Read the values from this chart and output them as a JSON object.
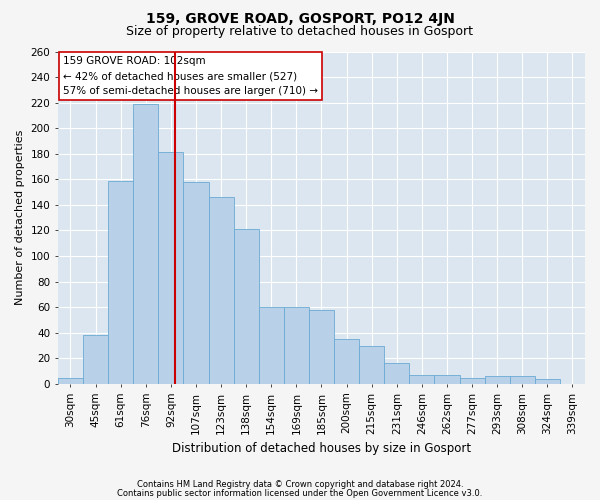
{
  "title": "159, GROVE ROAD, GOSPORT, PO12 4JN",
  "subtitle": "Size of property relative to detached houses in Gosport",
  "xlabel": "Distribution of detached houses by size in Gosport",
  "ylabel": "Number of detached properties",
  "categories": [
    "30sqm",
    "45sqm",
    "61sqm",
    "76sqm",
    "92sqm",
    "107sqm",
    "123sqm",
    "138sqm",
    "154sqm",
    "169sqm",
    "185sqm",
    "200sqm",
    "215sqm",
    "231sqm",
    "246sqm",
    "262sqm",
    "277sqm",
    "293sqm",
    "308sqm",
    "324sqm",
    "339sqm"
  ],
  "values": [
    5,
    38,
    159,
    219,
    181,
    158,
    146,
    121,
    60,
    60,
    58,
    35,
    30,
    16,
    7,
    7,
    5,
    6,
    6,
    4,
    0
  ],
  "bar_color": "#b8d0e8",
  "bar_edge_color": "#6aaad4",
  "background_color": "#dce6f0",
  "plot_bg_color": "#dce6f0",
  "fig_bg_color": "#f5f5f5",
  "grid_color": "#ffffff",
  "vline_color": "#cc0000",
  "annotation_text": "159 GROVE ROAD: 102sqm\n← 42% of detached houses are smaller (527)\n57% of semi-detached houses are larger (710) →",
  "annotation_box_color": "#ffffff",
  "annotation_box_edge": "#cc0000",
  "ylim": [
    0,
    260
  ],
  "yticks": [
    0,
    20,
    40,
    60,
    80,
    100,
    120,
    140,
    160,
    180,
    200,
    220,
    240,
    260
  ],
  "footer1": "Contains HM Land Registry data © Crown copyright and database right 2024.",
  "footer2": "Contains public sector information licensed under the Open Government Licence v3.0.",
  "title_fontsize": 10,
  "subtitle_fontsize": 9,
  "xlabel_fontsize": 8.5,
  "ylabel_fontsize": 8,
  "tick_fontsize": 7.5,
  "annotation_fontsize": 7.5,
  "footer_fontsize": 6
}
